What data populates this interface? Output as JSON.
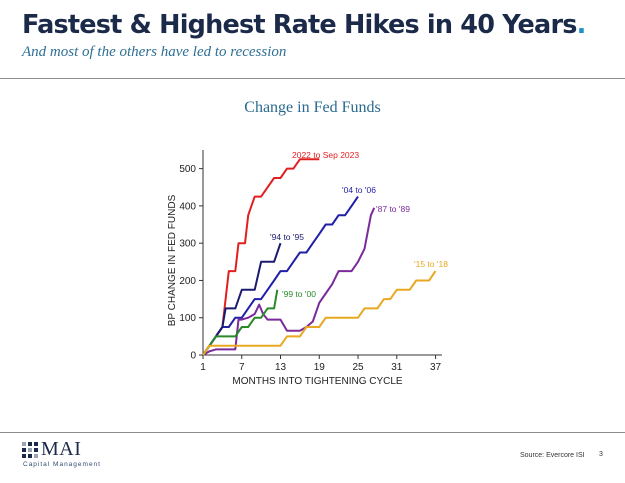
{
  "header": {
    "title": "Fastest & Highest Rate Hikes in 40 Years",
    "title_dot": ".",
    "subtitle": "And most of the others have led to recession"
  },
  "chart_heading": "Change in Fed Funds",
  "chart_data": {
    "type": "line",
    "title": "Change in Fed Funds",
    "xlabel": "MONTHS INTO TIGHTENING CYCLE",
    "ylabel": "BP CHANGE IN FED FUNDS",
    "xlim": [
      1,
      38
    ],
    "ylim": [
      0,
      550
    ],
    "xticks": [
      1,
      7,
      13,
      19,
      25,
      31,
      37
    ],
    "yticks": [
      0,
      100,
      200,
      300,
      400,
      500
    ],
    "grid": false,
    "legend": "inline labels",
    "series": [
      {
        "name": "2022 to Sep 2023",
        "color": "#e02020",
        "points": [
          [
            1,
            0
          ],
          [
            2,
            25
          ],
          [
            3,
            50
          ],
          [
            4,
            75
          ],
          [
            4.5,
            150
          ],
          [
            5,
            225
          ],
          [
            6,
            225
          ],
          [
            6.5,
            300
          ],
          [
            7.5,
            300
          ],
          [
            8,
            375
          ],
          [
            9,
            425
          ],
          [
            10,
            425
          ],
          [
            11,
            450
          ],
          [
            12,
            475
          ],
          [
            13,
            475
          ],
          [
            14,
            500
          ],
          [
            15,
            500
          ],
          [
            16,
            525
          ],
          [
            17,
            525
          ],
          [
            19,
            525
          ]
        ]
      },
      {
        "name": "'04 to '06",
        "color": "#1f1fa8",
        "points": [
          [
            1,
            0
          ],
          [
            2,
            25
          ],
          [
            3,
            50
          ],
          [
            4,
            75
          ],
          [
            5,
            75
          ],
          [
            6,
            100
          ],
          [
            7,
            100
          ],
          [
            8,
            125
          ],
          [
            9,
            150
          ],
          [
            10,
            150
          ],
          [
            11,
            175
          ],
          [
            12,
            200
          ],
          [
            13,
            225
          ],
          [
            14,
            225
          ],
          [
            15,
            250
          ],
          [
            16,
            275
          ],
          [
            17,
            275
          ],
          [
            18,
            300
          ],
          [
            19,
            325
          ],
          [
            20,
            350
          ],
          [
            21,
            350
          ],
          [
            22,
            375
          ],
          [
            23,
            375
          ],
          [
            24,
            400
          ],
          [
            25,
            425
          ]
        ]
      },
      {
        "name": "'87 to '89",
        "color": "#7a2a9a",
        "points": [
          [
            1,
            0
          ],
          [
            2,
            10
          ],
          [
            3,
            15
          ],
          [
            4,
            15
          ],
          [
            5,
            15
          ],
          [
            6,
            15
          ],
          [
            6.5,
            95
          ],
          [
            7,
            95
          ],
          [
            8,
            100
          ],
          [
            9,
            110
          ],
          [
            9.7,
            135
          ],
          [
            10.3,
            110
          ],
          [
            11,
            95
          ],
          [
            12,
            95
          ],
          [
            13,
            95
          ],
          [
            14,
            65
          ],
          [
            15,
            65
          ],
          [
            16,
            65
          ],
          [
            17,
            75
          ],
          [
            18,
            90
          ],
          [
            19,
            140
          ],
          [
            20,
            165
          ],
          [
            21,
            190
          ],
          [
            22,
            225
          ],
          [
            23,
            225
          ],
          [
            24,
            225
          ],
          [
            25,
            250
          ],
          [
            26,
            285
          ],
          [
            27,
            375
          ],
          [
            27.5,
            395
          ]
        ]
      },
      {
        "name": "'94 to '95",
        "color": "#1a1a6e",
        "points": [
          [
            1,
            0
          ],
          [
            2,
            25
          ],
          [
            3,
            50
          ],
          [
            4,
            75
          ],
          [
            4.5,
            125
          ],
          [
            5,
            125
          ],
          [
            6,
            125
          ],
          [
            7,
            175
          ],
          [
            8,
            175
          ],
          [
            9,
            175
          ],
          [
            10,
            250
          ],
          [
            11,
            250
          ],
          [
            12,
            250
          ],
          [
            12.5,
            275
          ],
          [
            13,
            300
          ]
        ]
      },
      {
        "name": "'99 to '00",
        "color": "#2a8a2a",
        "points": [
          [
            1,
            0
          ],
          [
            2,
            25
          ],
          [
            3,
            50
          ],
          [
            4,
            50
          ],
          [
            5,
            50
          ],
          [
            6,
            50
          ],
          [
            7,
            75
          ],
          [
            8,
            75
          ],
          [
            9,
            100
          ],
          [
            10,
            100
          ],
          [
            11,
            125
          ],
          [
            12,
            125
          ],
          [
            12.5,
            175
          ]
        ]
      },
      {
        "name": "'15 to '18",
        "color": "#e8a820",
        "points": [
          [
            1,
            0
          ],
          [
            2,
            25
          ],
          [
            13,
            25
          ],
          [
            14,
            50
          ],
          [
            15,
            50
          ],
          [
            16,
            50
          ],
          [
            17,
            75
          ],
          [
            18,
            75
          ],
          [
            19,
            75
          ],
          [
            20,
            100
          ],
          [
            24,
            100
          ],
          [
            25,
            100
          ],
          [
            26,
            125
          ],
          [
            28,
            125
          ],
          [
            29,
            150
          ],
          [
            30,
            150
          ],
          [
            31,
            175
          ],
          [
            33,
            175
          ],
          [
            34,
            200
          ],
          [
            36,
            200
          ],
          [
            37,
            225
          ]
        ]
      }
    ]
  },
  "footer": {
    "logo_name": "MAI",
    "logo_tagline": "Capital Management",
    "source": "Source: Evercore ISI",
    "page_number": "3"
  }
}
